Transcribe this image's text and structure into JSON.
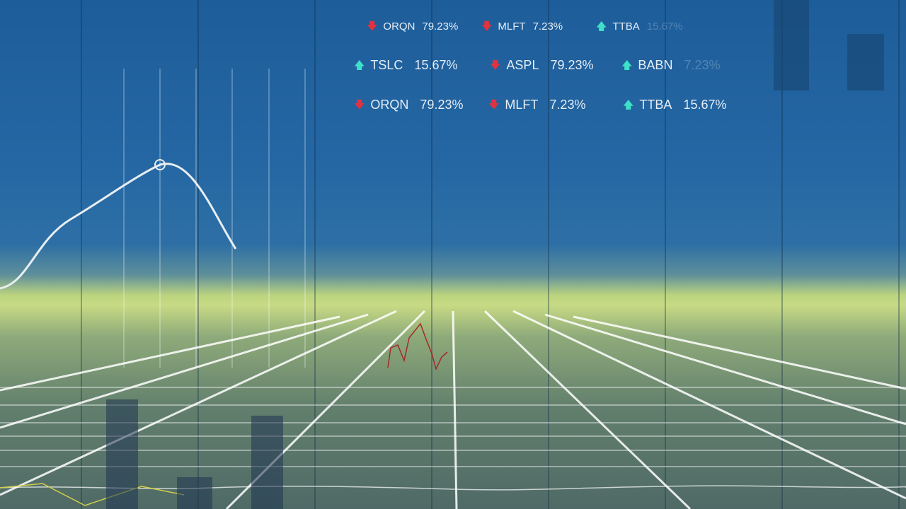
{
  "colors": {
    "up": "#3fe0c8",
    "down": "#e0323f",
    "sky": "#1d5d9a",
    "field": "#c7da84"
  },
  "tickers": [
    {
      "symbol": "ORQN",
      "value": "79.23%",
      "direction": "down",
      "icon": "arrow-down-icon"
    },
    {
      "symbol": "MLFT",
      "value": "7.23%",
      "direction": "down",
      "icon": "arrow-down-icon"
    },
    {
      "symbol": "TTBA",
      "value": "15.67%",
      "direction": "up",
      "icon": "arrow-up-icon"
    },
    {
      "symbol": "TSLC",
      "value": "15.67%",
      "direction": "up",
      "icon": "arrow-up-icon"
    },
    {
      "symbol": "ASPL",
      "value": "79.23%",
      "direction": "down",
      "icon": "arrow-down-icon"
    },
    {
      "symbol": "BABN",
      "value": "7.23%",
      "direction": "up",
      "icon": "arrow-up-icon"
    },
    {
      "symbol": "ORQN",
      "value": "79.23%",
      "direction": "down",
      "icon": "arrow-down-icon"
    },
    {
      "symbol": "MLFT",
      "value": "7.23%",
      "direction": "down",
      "icon": "arrow-down-icon"
    },
    {
      "symbol": "TTBA",
      "value": "15.67%",
      "direction": "up",
      "icon": "arrow-up-icon"
    }
  ],
  "arrows": {
    "up": "🡅",
    "down": "🡇"
  }
}
